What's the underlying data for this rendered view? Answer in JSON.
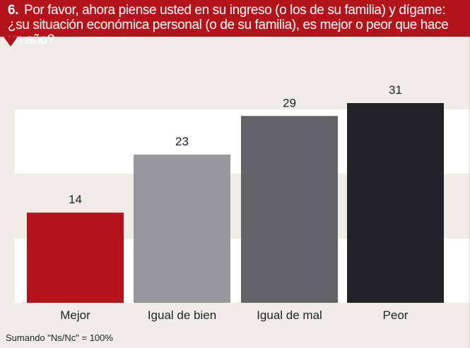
{
  "question": {
    "number": "6.",
    "text": "Por favor, ahora piense usted en su ingreso (o los de su familia) y dígame: ¿su situación económica personal (o de su familia), es mejor o peor que hace un año?"
  },
  "footnote": "Sumando \"Ns/Nc\" = 100%",
  "colors": {
    "header": "#b3141b",
    "background": "#efeee6",
    "bands": "#ffffff"
  },
  "chart_data": {
    "type": "bar",
    "title": "",
    "xlabel": "",
    "ylabel": "",
    "categories": [
      "Mejor",
      "Igual de bien",
      "Igual de mal",
      "Peor"
    ],
    "values": [
      14,
      23,
      29,
      31
    ],
    "colors": [
      "#b3141b",
      "#98989a",
      "#646466",
      "#232325"
    ],
    "ylim": [
      0,
      31
    ]
  }
}
